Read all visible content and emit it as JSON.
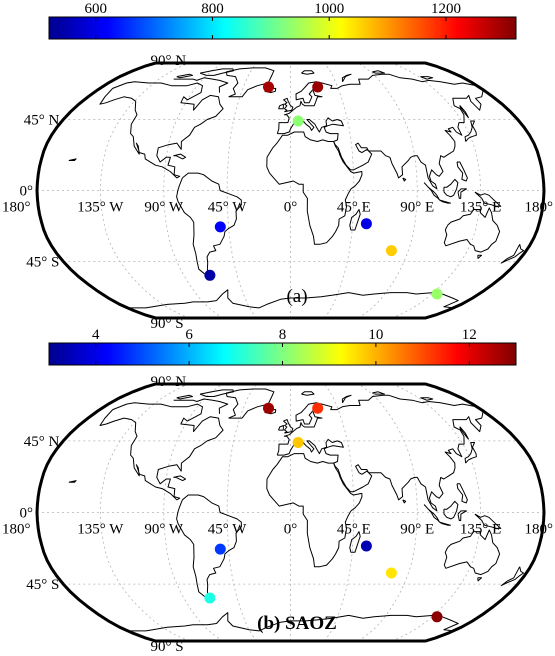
{
  "chart_data": [
    {
      "type": "scatter",
      "title": "(a)",
      "colorbar": {
        "ticks": [
          "600",
          "800",
          "1000",
          "1200"
        ],
        "tick_values": [
          600,
          800,
          1000,
          1200
        ],
        "range": [
          520,
          1320
        ],
        "colormap": "jet"
      },
      "lat_labels": [
        "90° N",
        "45° N",
        "0°",
        "45° S",
        "90° S"
      ],
      "lon_labels": [
        "180°",
        "135° W",
        "90° W",
        "45° W",
        "0°",
        "45° E",
        "90° E",
        "135° E",
        "180°"
      ],
      "points": [
        {
          "lon": -51,
          "lat": -23,
          "value": 620
        },
        {
          "lon": -68,
          "lat": -54,
          "value": 550
        },
        {
          "lon": -21,
          "lat": 67,
          "value": 1290
        },
        {
          "lon": 26,
          "lat": 67,
          "value": 1300
        },
        {
          "lon": 6,
          "lat": 44,
          "value": 930
        },
        {
          "lon": 55,
          "lat": -21,
          "value": 600
        },
        {
          "lon": 77,
          "lat": -38,
          "value": 1060
        },
        {
          "lon": 140,
          "lat": -67,
          "value": 940
        }
      ]
    },
    {
      "type": "scatter",
      "title": "(b) SAOZ",
      "colorbar": {
        "ticks": [
          "4",
          "6",
          "8",
          "10",
          "12"
        ],
        "tick_values": [
          4,
          6,
          8,
          10,
          12
        ],
        "range": [
          3.0,
          13.0
        ],
        "colormap": "jet"
      },
      "lat_labels": [
        "90° N",
        "45° N",
        "0°",
        "45° S",
        "90° S"
      ],
      "lon_labels": [
        "180°",
        "135° W",
        "90° W",
        "45° W",
        "0°",
        "45° E",
        "90° E",
        "135° E",
        "180°"
      ],
      "points": [
        {
          "lon": -51,
          "lat": -23,
          "value": 4.8
        },
        {
          "lon": -68,
          "lat": -54,
          "value": 7.0
        },
        {
          "lon": -21,
          "lat": 67,
          "value": 12.7
        },
        {
          "lon": 26,
          "lat": 67,
          "value": 11.3
        },
        {
          "lon": 6,
          "lat": 44,
          "value": 9.8
        },
        {
          "lon": 55,
          "lat": -21,
          "value": 3.5
        },
        {
          "lon": 77,
          "lat": -38,
          "value": 9.5
        },
        {
          "lon": 140,
          "lat": -67,
          "value": 12.9
        }
      ]
    }
  ]
}
